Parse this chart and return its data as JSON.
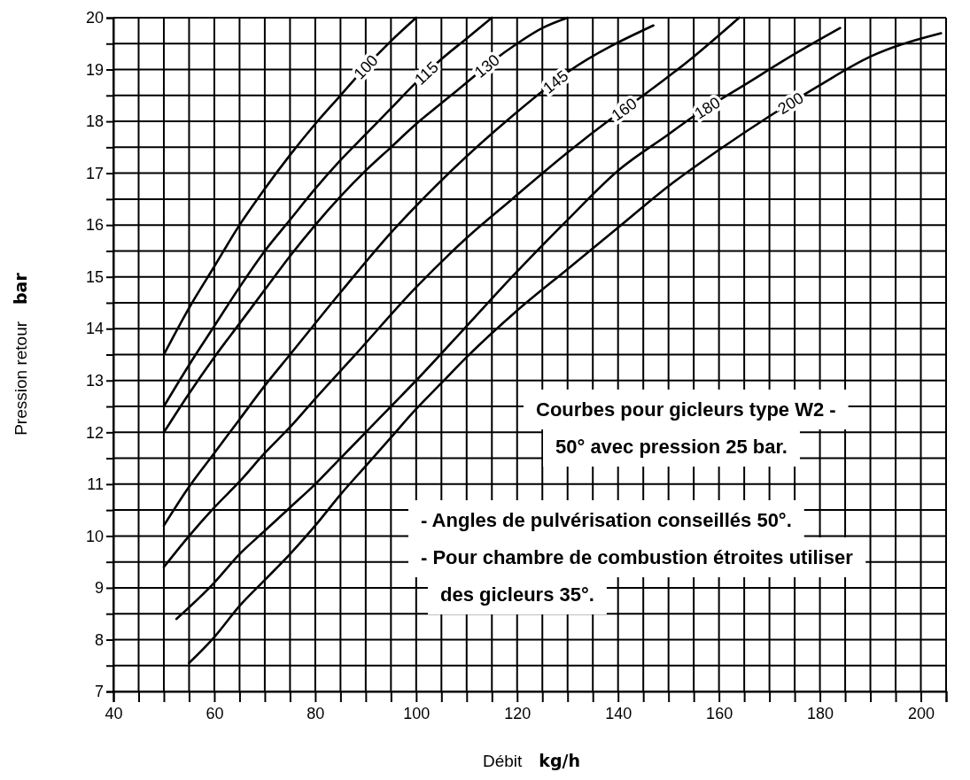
{
  "chart_data": {
    "type": "line",
    "xlabel": "Débit kg/h",
    "ylabel": "Pression retour bar",
    "xlim": [
      40,
      205
    ],
    "ylim": [
      7,
      20
    ],
    "xticks": [
      40,
      {
        "value": 45,
        "label": null
      },
      {
        "value": 50,
        "label": null
      },
      {
        "value": 55,
        "label": null
      },
      60,
      {
        "value": 65,
        "label": null
      },
      {
        "value": 70,
        "label": null
      },
      {
        "value": 75,
        "label": null
      },
      80,
      {
        "value": 85,
        "label": null
      },
      {
        "value": 90,
        "label": null
      },
      {
        "value": 95,
        "label": null
      },
      100,
      {
        "value": 105,
        "label": null
      },
      {
        "value": 110,
        "label": null
      },
      {
        "value": 115,
        "label": null
      },
      120,
      {
        "value": 125,
        "label": null
      },
      {
        "value": 130,
        "label": null
      },
      {
        "value": 135,
        "label": null
      },
      140,
      {
        "value": 145,
        "label": null
      },
      {
        "value": 150,
        "label": null
      },
      {
        "value": 155,
        "label": null
      },
      160,
      {
        "value": 165,
        "label": null
      },
      {
        "value": 170,
        "label": null
      },
      {
        "value": 175,
        "label": null
      },
      180,
      {
        "value": 185,
        "label": null
      },
      {
        "value": 190,
        "label": null
      },
      {
        "value": 195,
        "label": null
      },
      200,
      {
        "value": 205,
        "label": null
      }
    ],
    "yticks": [
      7,
      {
        "value": 7.5,
        "label": null
      },
      8,
      {
        "value": 8.5,
        "label": null
      },
      9,
      {
        "value": 9.5,
        "label": null
      },
      10,
      {
        "value": 10.5,
        "label": null
      },
      11,
      {
        "value": 11.5,
        "label": null
      },
      12,
      {
        "value": 12.5,
        "label": null
      },
      13,
      {
        "value": 13.5,
        "label": null
      },
      14,
      {
        "value": 14.5,
        "label": null
      },
      15,
      {
        "value": 15.5,
        "label": null
      },
      16,
      {
        "value": 16.5,
        "label": null
      },
      17,
      {
        "value": 17.5,
        "label": null
      },
      18,
      {
        "value": 18.5,
        "label": null
      },
      19,
      {
        "value": 19.5,
        "label": null
      },
      20
    ],
    "grid": true,
    "marker": "none",
    "line_style": "solid",
    "series": [
      {
        "name": "100",
        "color": "#000000",
        "x": [
          50,
          55,
          60,
          65,
          70,
          75,
          80,
          85,
          90,
          95,
          100
        ],
        "values": [
          13.5,
          14.4,
          15.2,
          16,
          16.7,
          17.35,
          17.95,
          18.5,
          19.05,
          19.55,
          20
        ]
      },
      {
        "name": "115",
        "color": "#000000",
        "x": [
          50,
          55,
          60,
          65,
          70,
          75,
          80,
          85,
          90,
          95,
          100,
          105,
          110,
          115
        ],
        "values": [
          12.5,
          13.3,
          14.05,
          14.8,
          15.5,
          16.1,
          16.7,
          17.25,
          17.75,
          18.25,
          18.75,
          19.2,
          19.6,
          20
        ]
      },
      {
        "name": "130",
        "color": "#000000",
        "x": [
          50,
          55,
          60,
          65,
          70,
          75,
          80,
          85,
          90,
          95,
          100,
          105,
          110,
          115,
          120,
          125,
          130
        ],
        "values": [
          12,
          12.75,
          13.45,
          14.1,
          14.75,
          15.4,
          16,
          16.55,
          17.05,
          17.5,
          17.95,
          18.35,
          18.75,
          19.15,
          19.5,
          19.8,
          20
        ]
      },
      {
        "name": "145",
        "color": "#000000",
        "x": [
          50,
          55,
          60,
          65,
          70,
          75,
          85,
          95,
          107,
          119,
          130,
          147
        ],
        "values": [
          10.2,
          10.95,
          11.6,
          12.25,
          12.9,
          13.5,
          14.7,
          15.85,
          17.05,
          18.1,
          18.95,
          19.85
        ]
      },
      {
        "name": "160",
        "color": "#000000",
        "x": [
          50,
          55,
          60,
          65,
          70,
          75,
          80,
          87.5,
          100,
          110,
          119,
          130,
          140,
          145,
          155,
          164
        ],
        "values": [
          9.4,
          10,
          10.55,
          11.05,
          11.6,
          12.1,
          12.65,
          13.45,
          14.8,
          15.75,
          16.5,
          17.4,
          18.15,
          18.5,
          19.25,
          20
        ]
      },
      {
        "name": "180",
        "color": "#000000",
        "x": [
          52.5,
          60,
          65,
          70,
          75,
          80,
          85,
          90,
          95,
          100,
          110,
          119,
          130,
          140,
          150,
          155,
          165,
          175,
          184
        ],
        "values": [
          8.4,
          9.1,
          9.65,
          10.1,
          10.55,
          11,
          11.5,
          12,
          12.5,
          13,
          14.05,
          15,
          16.1,
          17.05,
          17.75,
          18.1,
          18.7,
          19.3,
          19.8
        ]
      },
      {
        "name": "200",
        "color": "#000000",
        "x": [
          55,
          60,
          65,
          70,
          75,
          80,
          85,
          90,
          95,
          100,
          105,
          110,
          120,
          130,
          140,
          150,
          160,
          170,
          180,
          190,
          204
        ],
        "values": [
          7.55,
          8.05,
          8.65,
          9.15,
          9.65,
          10.2,
          10.8,
          11.35,
          11.9,
          12.45,
          12.95,
          13.45,
          14.35,
          15.15,
          15.95,
          16.75,
          17.45,
          18.1,
          18.7,
          19.25,
          19.7
        ]
      }
    ],
    "annotations": [
      "Courbes pour gicleurs type W2 - 50° avec pression 25 bar.",
      "- Angles de pulvérisation conseillés 50°.",
      "- Pour chambre de combustion étroites utiliser des gicleurs 35°."
    ]
  }
}
